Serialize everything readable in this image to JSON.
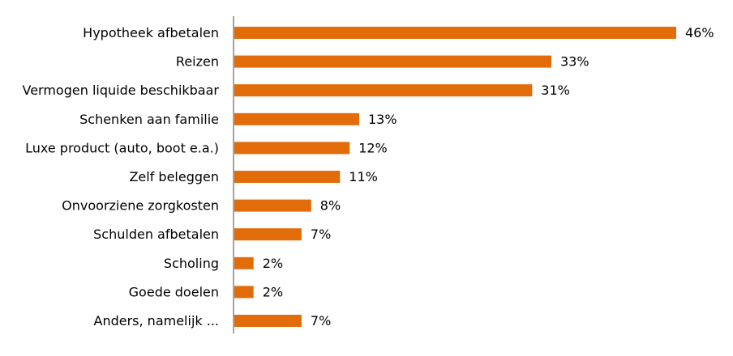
{
  "chart_data": {
    "type": "bar",
    "orientation": "horizontal",
    "categories": [
      "Hypotheek afbetalen",
      "Reizen",
      "Vermogen liquide beschikbaar",
      "Schenken aan familie",
      "Luxe product (auto, boot e.a.)",
      "Zelf beleggen",
      "Onvoorziene zorgkosten",
      "Schulden afbetalen",
      "Scholing",
      "Goede doelen",
      "Anders, namelijk ..."
    ],
    "values": [
      46,
      33,
      31,
      13,
      12,
      11,
      8,
      7,
      2,
      2,
      7
    ],
    "value_labels": [
      "46%",
      "33%",
      "31%",
      "13%",
      "12%",
      "11%",
      "8%",
      "7%",
      "2%",
      "2%",
      "7%"
    ],
    "unit": "%",
    "xlim": [
      0,
      46
    ],
    "grid": false,
    "legend": "none",
    "colors": {
      "bar": "#E36C0A",
      "axis": "#868686",
      "text": "#000000"
    }
  }
}
